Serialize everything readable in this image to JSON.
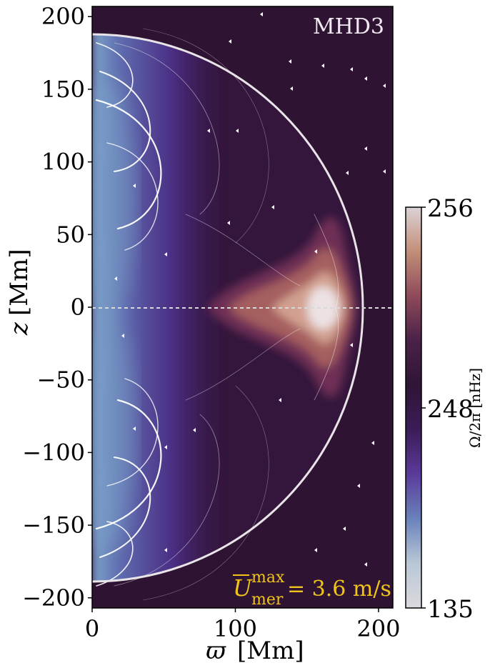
{
  "figure": {
    "panel_label": "MHD3",
    "annotation": {
      "symbol": "U",
      "sup": "max",
      "sub": "mer",
      "value_text": "= 3.6 m/s",
      "color": "#f0c419"
    },
    "xlabel_symbol": "ϖ",
    "xlabel_unit": "[Mm]",
    "ylabel_symbol": "z",
    "ylabel_unit": "[Mm]"
  },
  "colorbar": {
    "label": "Ω/2π [nHz]",
    "ticks": [
      "256",
      "248",
      "135"
    ],
    "colors_top_to_bottom": [
      "#dcd2d6",
      "#c28e78",
      "#8e4a5a",
      "#4a2148",
      "#2f1535",
      "#3c1c58",
      "#5b3b9a",
      "#6a82bb",
      "#b9c8d6",
      "#dcd8de"
    ]
  },
  "chart_data": {
    "type": "heatmap",
    "title": "MHD3",
    "xlabel": "ϖ [Mm]",
    "ylabel": "z [Mm]",
    "xlim": [
      0,
      210
    ],
    "ylim": [
      -207,
      207
    ],
    "x_ticks": [
      0,
      100,
      200
    ],
    "y_ticks": [
      -200,
      -150,
      -100,
      -50,
      0,
      50,
      100,
      150,
      200
    ],
    "x_tick_labels": [
      "0",
      "100",
      "200"
    ],
    "y_tick_labels": [
      "−200",
      "−150",
      "−100",
      "−50",
      "0",
      "50",
      "100",
      "150",
      "200"
    ],
    "colorbar_range_nHz": [
      135,
      256
    ],
    "colorbar_tick_labels": [
      "256",
      "248",
      "135"
    ],
    "overlay": {
      "boundary_radius_Mm": 189,
      "equator_line_z": 0,
      "streamlines": "meridional flow",
      "max_meridional_speed": "3.6 m/s"
    },
    "features": [
      {
        "name": "equatorial rotation maximum",
        "x_center": 160,
        "z_center": 0,
        "value_nHz": 256
      },
      {
        "name": "polar axis slow rotation",
        "x_range": [
          0,
          40
        ],
        "value_nHz_approx": 140
      }
    ]
  }
}
